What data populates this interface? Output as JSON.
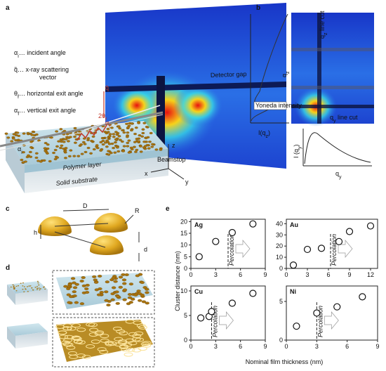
{
  "panel_a": {
    "label": "a",
    "legend": [
      {
        "symbol": "α",
        "sub": "i",
        "text": "… incident angle",
        "color": "#111"
      },
      {
        "symbol": "q̃",
        "sub": "",
        "text": "… x-ray scattering",
        "text2": "vector",
        "color": "#c0392b"
      },
      {
        "symbol": "θ",
        "sub": "f",
        "text": "… horizontal exit angle",
        "color": "#c0392b"
      },
      {
        "symbol": "α",
        "sub": "f",
        "text": "… vertical exit angle",
        "color": "#c0392b"
      }
    ],
    "detector_gap": "Detector gap",
    "beamstop": "Beamstop",
    "polymer_layer": "Polymer layer",
    "solid_substrate": "Solid substrate",
    "axis_z": "z",
    "axis_x": "x",
    "axis_y": "y",
    "incident": {
      "symbol": "α",
      "sub": "i"
    },
    "exit": {
      "symbol": "α",
      "sub": "f"
    },
    "horizontal": {
      "symbol": "2θ",
      "sub": "f"
    },
    "vector": {
      "symbol": "q̃",
      "sub": ""
    }
  },
  "panel_b": {
    "label": "b",
    "qz_cut": {
      "symbol": "q",
      "sub": "z",
      "text": " line cut"
    },
    "qy_cut": {
      "symbol": "q",
      "sub": "y",
      "text": " line cut"
    },
    "yoneda": "Yoneda intensity",
    "iqz": {
      "symbol": "I(q",
      "sub": "z",
      "text": ")"
    },
    "qz": {
      "symbol": "q",
      "sub": "z"
    },
    "iqy": {
      "symbol": "I (q",
      "sub": "y",
      "text": ")"
    },
    "qy": {
      "symbol": "q",
      "sub": "y"
    }
  },
  "panel_c": {
    "label": "c",
    "D": "D",
    "R": "R",
    "h": "h",
    "d": "d"
  },
  "panel_d": {
    "label": "d"
  },
  "panel_e": {
    "label": "e",
    "ylabel": "Cluster distance (nm)",
    "xlabel": "Nominal film thickness (nm)"
  },
  "chart_data": [
    {
      "type": "scatter",
      "title": "Ag",
      "x": [
        1,
        3,
        5,
        7.5
      ],
      "values": [
        5,
        11.5,
        15.3,
        19
      ],
      "xlim": [
        0,
        9
      ],
      "ylim": [
        0,
        21
      ],
      "xticks": [
        0,
        3,
        6,
        9
      ],
      "yticks": [
        0,
        5,
        10,
        15,
        20
      ],
      "annotation": "Percolation",
      "percolation_x": 4.5
    },
    {
      "type": "scatter",
      "title": "Au",
      "x": [
        1,
        3,
        5,
        7.5,
        9,
        12
      ],
      "values": [
        3,
        17,
        18,
        24,
        33,
        38
      ],
      "xlim": [
        0,
        13
      ],
      "ylim": [
        0,
        44
      ],
      "xticks": [
        0,
        3,
        6,
        9,
        12
      ],
      "yticks": [
        0,
        10,
        20,
        30,
        40
      ],
      "annotation": "Percolation",
      "percolation_x": 6.3
    },
    {
      "type": "scatter",
      "title": "Cu",
      "x": [
        1.2,
        2.2,
        2.5,
        5,
        7.5
      ],
      "values": [
        4.5,
        4.8,
        5.8,
        7.5,
        9.5
      ],
      "xlim": [
        0,
        9
      ],
      "ylim": [
        0,
        11
      ],
      "xticks": [
        0,
        3,
        6,
        9
      ],
      "yticks": [
        0,
        5,
        10
      ],
      "annotation": "Percolation",
      "percolation_x": 2.5
    },
    {
      "type": "scatter",
      "title": "Ni",
      "x": [
        1,
        3,
        5,
        7.5
      ],
      "values": [
        1.8,
        3.5,
        4.3,
        5.6
      ],
      "xlim": [
        0,
        9
      ],
      "ylim": [
        0,
        7
      ],
      "xticks": [
        0,
        3,
        6,
        9
      ],
      "yticks": [
        0,
        5
      ],
      "annotation": "Percolation",
      "percolation_x": 3
    }
  ]
}
